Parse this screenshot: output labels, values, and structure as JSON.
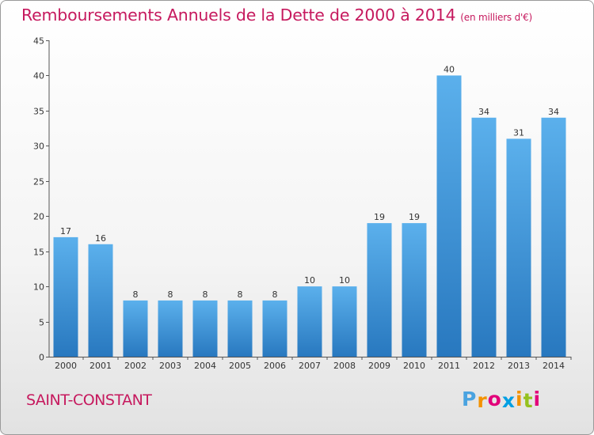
{
  "chart_data": {
    "type": "bar",
    "title": "Remboursements Annuels de la Dette de 2000 à 2014",
    "subtitle": "(en milliers d'€)",
    "categories": [
      "2000",
      "2001",
      "2002",
      "2003",
      "2004",
      "2005",
      "2006",
      "2007",
      "2008",
      "2009",
      "2010",
      "2011",
      "2012",
      "2013",
      "2014"
    ],
    "values": [
      17,
      16,
      8,
      8,
      8,
      8,
      8,
      10,
      10,
      19,
      19,
      40,
      34,
      31,
      34
    ],
    "ylim": [
      0,
      45
    ],
    "yticks": [
      0,
      5,
      10,
      15,
      20,
      25,
      30,
      35,
      40,
      45
    ],
    "xlabel": "",
    "ylabel": "",
    "grid": false,
    "bar_color": "#3f94db"
  },
  "footer": {
    "city": "SAINT-CONSTANT",
    "logo_letters": [
      "P",
      "r",
      "o",
      "x",
      "i",
      "t",
      "i"
    ],
    "logo_colors": [
      "#4aa3e0",
      "#f39200",
      "#e2007a",
      "#009fe3",
      "#f39200",
      "#95c11f",
      "#e2007a"
    ]
  },
  "colors": {
    "title": "#c6195e",
    "axis": "#555555"
  }
}
